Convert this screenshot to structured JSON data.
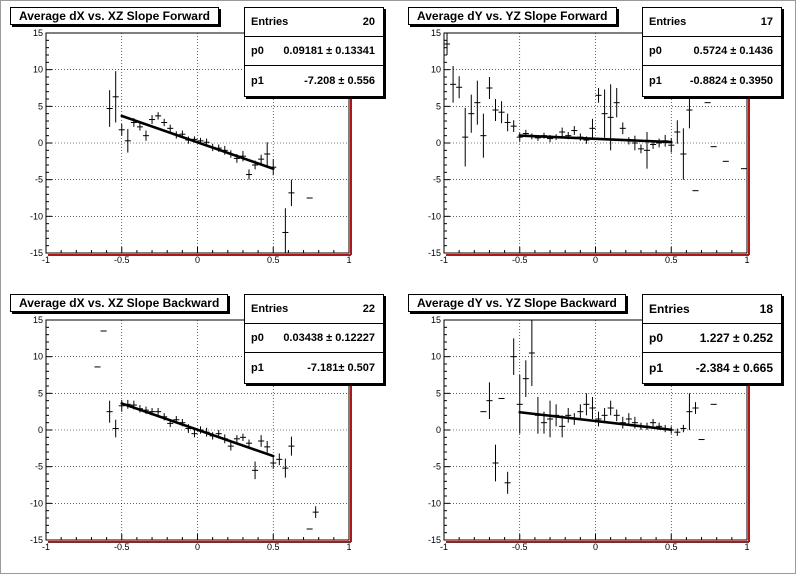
{
  "chart_data": [
    {
      "type": "scatter",
      "title": "Average dX vs. XZ Slope Forward",
      "xlim": [
        -1,
        1
      ],
      "ylim": [
        -15,
        15
      ],
      "xticks": [
        "-1",
        "-0.5",
        "0",
        "0.5",
        "1"
      ],
      "yticks": [
        "-15",
        "-10",
        "-5",
        "0",
        "5",
        "10",
        "15"
      ],
      "grid": true,
      "stats": {
        "entries_label": "Entries",
        "entries": "20",
        "p0_label": "p0",
        "p0": "0.09181 ± 0.13341",
        "p1_label": "p1",
        "p1": "-7.208 ± 0.556"
      },
      "fit": {
        "p0": 0.09181,
        "p1": -7.208,
        "x_range": [
          -0.5,
          0.5
        ]
      },
      "points": [
        {
          "x": -0.58,
          "y": 4.7,
          "ey": 2.5
        },
        {
          "x": -0.54,
          "y": 6.3,
          "ey": 3.5
        },
        {
          "x": -0.5,
          "y": 1.8,
          "ey": 0.8
        },
        {
          "x": -0.46,
          "y": 0.3,
          "ey": 1.6
        },
        {
          "x": -0.42,
          "y": 2.8,
          "ey": 0.6
        },
        {
          "x": -0.38,
          "y": 2.2,
          "ey": 0.5
        },
        {
          "x": -0.34,
          "y": 1.0,
          "ey": 0.7
        },
        {
          "x": -0.3,
          "y": 3.2,
          "ey": 0.6
        },
        {
          "x": -0.26,
          "y": 3.7,
          "ey": 0.5
        },
        {
          "x": -0.22,
          "y": 2.8,
          "ey": 0.5
        },
        {
          "x": -0.18,
          "y": 2.0,
          "ey": 0.5
        },
        {
          "x": -0.14,
          "y": 1.1,
          "ey": 0.5
        },
        {
          "x": -0.1,
          "y": 1.2,
          "ey": 0.5
        },
        {
          "x": -0.06,
          "y": 0.4,
          "ey": 0.5
        },
        {
          "x": -0.02,
          "y": 0.5,
          "ey": 0.4
        },
        {
          "x": 0.02,
          "y": 0.3,
          "ey": 0.4
        },
        {
          "x": 0.06,
          "y": 0.1,
          "ey": 0.5
        },
        {
          "x": 0.1,
          "y": -0.6,
          "ey": 0.5
        },
        {
          "x": 0.14,
          "y": -0.7,
          "ey": 0.5
        },
        {
          "x": 0.18,
          "y": -1.0,
          "ey": 0.6
        },
        {
          "x": 0.22,
          "y": -1.5,
          "ey": 0.5
        },
        {
          "x": 0.26,
          "y": -2.1,
          "ey": 0.6
        },
        {
          "x": 0.3,
          "y": -1.8,
          "ey": 0.7
        },
        {
          "x": 0.34,
          "y": -4.3,
          "ey": 0.7
        },
        {
          "x": 0.38,
          "y": -3.0,
          "ey": 0.6
        },
        {
          "x": 0.42,
          "y": -2.2,
          "ey": 0.6
        },
        {
          "x": 0.46,
          "y": -1.5,
          "ey": 1.6
        },
        {
          "x": 0.5,
          "y": -3.3,
          "ey": 1.1
        },
        {
          "x": 0.58,
          "y": -12.2,
          "ey": 3.3
        },
        {
          "x": 0.62,
          "y": -6.8,
          "ey": 1.8
        },
        {
          "x": 0.74,
          "y": -7.5,
          "ey": 0
        }
      ]
    },
    {
      "type": "scatter",
      "title": "Average dY vs. YZ Slope Forward",
      "xlim": [
        -1,
        1
      ],
      "ylim": [
        -15,
        15
      ],
      "xticks": [
        "-1",
        "-0.5",
        "0",
        "0.5",
        "1"
      ],
      "yticks": [
        "-15",
        "-10",
        "-5",
        "0",
        "5",
        "10",
        "15"
      ],
      "grid": true,
      "stats": {
        "entries_label": "Entries",
        "entries": "17",
        "p0_label": "p0",
        "p0": "0.5724 ± 0.1436",
        "p1_label": "p1",
        "p1": "-0.8824 ± 0.3950"
      },
      "fit": {
        "p0": 0.5724,
        "p1": -0.8824,
        "x_range": [
          -0.5,
          0.5
        ]
      },
      "points": [
        {
          "x": -0.98,
          "y": 13.5,
          "ey": 1.5
        },
        {
          "x": -0.94,
          "y": 8.0,
          "ey": 2.5
        },
        {
          "x": -0.9,
          "y": 7.6,
          "ey": 1.5
        },
        {
          "x": -0.86,
          "y": 0.8,
          "ey": 4.0
        },
        {
          "x": -0.82,
          "y": 4.0,
          "ey": 2.6
        },
        {
          "x": -0.78,
          "y": 5.5,
          "ey": 3.0
        },
        {
          "x": -0.74,
          "y": 1.0,
          "ey": 3.0
        },
        {
          "x": -0.7,
          "y": 7.5,
          "ey": 1.5
        },
        {
          "x": -0.66,
          "y": 4.5,
          "ey": 1.5
        },
        {
          "x": -0.62,
          "y": 4.2,
          "ey": 1.5
        },
        {
          "x": -0.58,
          "y": 2.8,
          "ey": 1.2
        },
        {
          "x": -0.54,
          "y": 2.3,
          "ey": 0.8
        },
        {
          "x": -0.5,
          "y": 0.8,
          "ey": 0.6
        },
        {
          "x": -0.46,
          "y": 1.3,
          "ey": 0.5
        },
        {
          "x": -0.42,
          "y": 0.9,
          "ey": 0.4
        },
        {
          "x": -0.38,
          "y": 0.7,
          "ey": 0.4
        },
        {
          "x": -0.34,
          "y": 1.0,
          "ey": 0.4
        },
        {
          "x": -0.3,
          "y": 0.6,
          "ey": 0.5
        },
        {
          "x": -0.26,
          "y": 0.8,
          "ey": 0.4
        },
        {
          "x": -0.22,
          "y": 1.5,
          "ey": 0.6
        },
        {
          "x": -0.18,
          "y": 1.0,
          "ey": 0.5
        },
        {
          "x": -0.14,
          "y": 1.7,
          "ey": 0.6
        },
        {
          "x": -0.1,
          "y": 0.8,
          "ey": 0.5
        },
        {
          "x": -0.06,
          "y": 0.4,
          "ey": 0.5
        },
        {
          "x": -0.02,
          "y": 2.0,
          "ey": 1.3
        },
        {
          "x": 0.02,
          "y": 6.5,
          "ey": 1.0
        },
        {
          "x": 0.06,
          "y": 4.0,
          "ey": 3.3
        },
        {
          "x": 0.1,
          "y": 3.5,
          "ey": 4.5
        },
        {
          "x": 0.14,
          "y": 5.5,
          "ey": 2.0
        },
        {
          "x": 0.18,
          "y": 2.0,
          "ey": 0.8
        },
        {
          "x": 0.22,
          "y": 0.3,
          "ey": 0.5
        },
        {
          "x": 0.26,
          "y": 0.0,
          "ey": 1.0
        },
        {
          "x": 0.3,
          "y": -0.8,
          "ey": 0.6
        },
        {
          "x": 0.34,
          "y": -1.0,
          "ey": 2.5
        },
        {
          "x": 0.38,
          "y": -0.2,
          "ey": 0.6
        },
        {
          "x": 0.42,
          "y": 0.0,
          "ey": 0.6
        },
        {
          "x": 0.46,
          "y": 0.3,
          "ey": 0.8
        },
        {
          "x": 0.5,
          "y": -0.3,
          "ey": 1.0
        },
        {
          "x": 0.54,
          "y": 1.5,
          "ey": 1.6
        },
        {
          "x": 0.58,
          "y": -1.5,
          "ey": 3.5
        },
        {
          "x": 0.62,
          "y": 4.5,
          "ey": 2.5
        },
        {
          "x": 0.66,
          "y": -6.5,
          "ey": 0
        },
        {
          "x": 0.74,
          "y": 5.5,
          "ey": 0
        },
        {
          "x": 0.78,
          "y": -0.5,
          "ey": 0
        },
        {
          "x": 0.86,
          "y": -2.5,
          "ey": 0
        },
        {
          "x": 0.98,
          "y": -3.5,
          "ey": 0
        }
      ]
    },
    {
      "type": "scatter",
      "title": "Average dX vs. XZ Slope Backward",
      "xlim": [
        -1,
        1
      ],
      "ylim": [
        -15,
        15
      ],
      "xticks": [
        "-1",
        "-0.5",
        "0",
        "0.5",
        "1"
      ],
      "yticks": [
        "-15",
        "-10",
        "-5",
        "0",
        "5",
        "10",
        "15"
      ],
      "grid": true,
      "stats": {
        "entries_label": "Entries",
        "entries": "22",
        "p0_label": "p0",
        "p0": "0.03438 ± 0.12227",
        "p1_label": "p1",
        "p1": "-7.181± 0.507"
      },
      "fit": {
        "p0": 0.03438,
        "p1": -7.181,
        "x_range": [
          -0.5,
          0.5
        ]
      },
      "points": [
        {
          "x": -0.66,
          "y": 8.6,
          "ey": 0
        },
        {
          "x": -0.62,
          "y": 13.5,
          "ey": 0
        },
        {
          "x": -0.58,
          "y": 2.5,
          "ey": 1.5
        },
        {
          "x": -0.54,
          "y": 0.2,
          "ey": 1.2
        },
        {
          "x": -0.5,
          "y": 3.3,
          "ey": 0.8
        },
        {
          "x": -0.46,
          "y": 3.5,
          "ey": 0.6
        },
        {
          "x": -0.42,
          "y": 3.4,
          "ey": 0.6
        },
        {
          "x": -0.38,
          "y": 2.9,
          "ey": 0.5
        },
        {
          "x": -0.34,
          "y": 2.7,
          "ey": 0.5
        },
        {
          "x": -0.3,
          "y": 2.5,
          "ey": 0.5
        },
        {
          "x": -0.26,
          "y": 2.5,
          "ey": 0.5
        },
        {
          "x": -0.22,
          "y": 1.8,
          "ey": 0.5
        },
        {
          "x": -0.18,
          "y": 0.9,
          "ey": 0.5
        },
        {
          "x": -0.14,
          "y": 1.4,
          "ey": 0.5
        },
        {
          "x": -0.1,
          "y": 1.0,
          "ey": 0.5
        },
        {
          "x": -0.06,
          "y": 0.2,
          "ey": 0.6
        },
        {
          "x": -0.02,
          "y": -0.5,
          "ey": 0.5
        },
        {
          "x": 0.02,
          "y": 0.0,
          "ey": 0.5
        },
        {
          "x": 0.06,
          "y": -0.3,
          "ey": 0.6
        },
        {
          "x": 0.1,
          "y": -0.8,
          "ey": 0.5
        },
        {
          "x": 0.14,
          "y": -0.5,
          "ey": 0.5
        },
        {
          "x": 0.18,
          "y": -1.2,
          "ey": 0.6
        },
        {
          "x": 0.22,
          "y": -2.2,
          "ey": 0.6
        },
        {
          "x": 0.26,
          "y": -1.2,
          "ey": 0.5
        },
        {
          "x": 0.3,
          "y": -1.0,
          "ey": 0.5
        },
        {
          "x": 0.34,
          "y": -1.8,
          "ey": 0.5
        },
        {
          "x": 0.38,
          "y": -5.5,
          "ey": 1.2
        },
        {
          "x": 0.42,
          "y": -1.5,
          "ey": 0.8
        },
        {
          "x": 0.46,
          "y": -2.3,
          "ey": 0.8
        },
        {
          "x": 0.5,
          "y": -4.5,
          "ey": 0.8
        },
        {
          "x": 0.54,
          "y": -4.0,
          "ey": 0.8
        },
        {
          "x": 0.58,
          "y": -5.2,
          "ey": 1.3
        },
        {
          "x": 0.62,
          "y": -2.2,
          "ey": 1.3
        },
        {
          "x": 0.74,
          "y": -13.5,
          "ey": 0
        },
        {
          "x": 0.78,
          "y": -11.2,
          "ey": 0.8
        }
      ]
    },
    {
      "type": "scatter",
      "title": "Average dY vs. YZ Slope Backward",
      "xlim": [
        -1,
        1
      ],
      "ylim": [
        -15,
        15
      ],
      "xticks": [
        "-1",
        "-0.5",
        "0",
        "0.5",
        "1"
      ],
      "yticks": [
        "-15",
        "-10",
        "-5",
        "0",
        "5",
        "10",
        "15"
      ],
      "grid": true,
      "stats": {
        "entries_label": "Entries",
        "entries": "18",
        "p0_label": "p0",
        "p0": "1.227 ± 0.252",
        "p1_label": "p1",
        "p1": "-2.384 ± 0.665"
      },
      "fit": {
        "p0": 1.227,
        "p1": -2.384,
        "x_range": [
          -0.5,
          0.5
        ]
      },
      "points": [
        {
          "x": -0.74,
          "y": 2.5,
          "ey": 0
        },
        {
          "x": -0.7,
          "y": 4.0,
          "ey": 2.5
        },
        {
          "x": -0.66,
          "y": -4.5,
          "ey": 2.5
        },
        {
          "x": -0.62,
          "y": 4.3,
          "ey": 0
        },
        {
          "x": -0.58,
          "y": -7.2,
          "ey": 1.5
        },
        {
          "x": -0.54,
          "y": 10.0,
          "ey": 2.5
        },
        {
          "x": -0.5,
          "y": 3.5,
          "ey": 4.0
        },
        {
          "x": -0.46,
          "y": 7.0,
          "ey": 2.5
        },
        {
          "x": -0.42,
          "y": 10.5,
          "ey": 4.5
        },
        {
          "x": -0.38,
          "y": 2.0,
          "ey": 2.5
        },
        {
          "x": -0.34,
          "y": 1.0,
          "ey": 1.5
        },
        {
          "x": -0.3,
          "y": 1.5,
          "ey": 2.5
        },
        {
          "x": -0.26,
          "y": 2.0,
          "ey": 1.5
        },
        {
          "x": -0.22,
          "y": 0.5,
          "ey": 1.5
        },
        {
          "x": -0.18,
          "y": 2.0,
          "ey": 1.0
        },
        {
          "x": -0.14,
          "y": 1.5,
          "ey": 0.8
        },
        {
          "x": -0.1,
          "y": 2.5,
          "ey": 1.0
        },
        {
          "x": -0.06,
          "y": 3.5,
          "ey": 1.5
        },
        {
          "x": -0.02,
          "y": 3.0,
          "ey": 1.5
        },
        {
          "x": 0.02,
          "y": 1.5,
          "ey": 1.0
        },
        {
          "x": 0.06,
          "y": 2.0,
          "ey": 1.0
        },
        {
          "x": 0.1,
          "y": 3.0,
          "ey": 1.0
        },
        {
          "x": 0.14,
          "y": 2.0,
          "ey": 0.8
        },
        {
          "x": 0.18,
          "y": 1.0,
          "ey": 0.8
        },
        {
          "x": 0.22,
          "y": 1.5,
          "ey": 0.8
        },
        {
          "x": 0.26,
          "y": 1.0,
          "ey": 0.8
        },
        {
          "x": 0.3,
          "y": 0.5,
          "ey": 0.5
        },
        {
          "x": 0.34,
          "y": 0.5,
          "ey": 0.5
        },
        {
          "x": 0.38,
          "y": 1.0,
          "ey": 0.5
        },
        {
          "x": 0.42,
          "y": 0.5,
          "ey": 0.5
        },
        {
          "x": 0.46,
          "y": 0.2,
          "ey": 0.5
        },
        {
          "x": 0.5,
          "y": 0.0,
          "ey": 0.5
        },
        {
          "x": 0.54,
          "y": -0.3,
          "ey": 0.5
        },
        {
          "x": 0.58,
          "y": 0.2,
          "ey": 0.5
        },
        {
          "x": 0.62,
          "y": 2.5,
          "ey": 2.5
        },
        {
          "x": 0.66,
          "y": 3.0,
          "ey": 0.8
        },
        {
          "x": 0.7,
          "y": -1.3,
          "ey": 0
        },
        {
          "x": 0.78,
          "y": 3.5,
          "ey": 0
        }
      ]
    }
  ]
}
